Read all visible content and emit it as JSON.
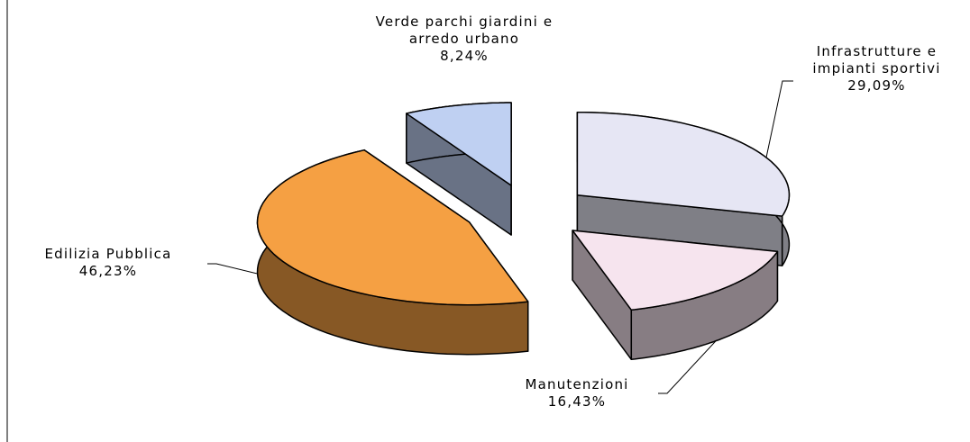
{
  "chart_data": {
    "type": "pie",
    "categories": [
      "Infrastrutture e impianti sportivi",
      "Manutenzioni",
      "Edilizia Pubblica",
      "Verde parchi giardini e arredo urbano"
    ],
    "values": [
      29.09,
      16.43,
      46.23,
      8.24
    ],
    "value_labels": [
      "29,09%",
      "16,43%",
      "46,23%",
      "8,24%"
    ],
    "colors": [
      "#e6e6f4",
      "#f6e4ee",
      "#f5a043",
      "#bfd0f2"
    ]
  }
}
